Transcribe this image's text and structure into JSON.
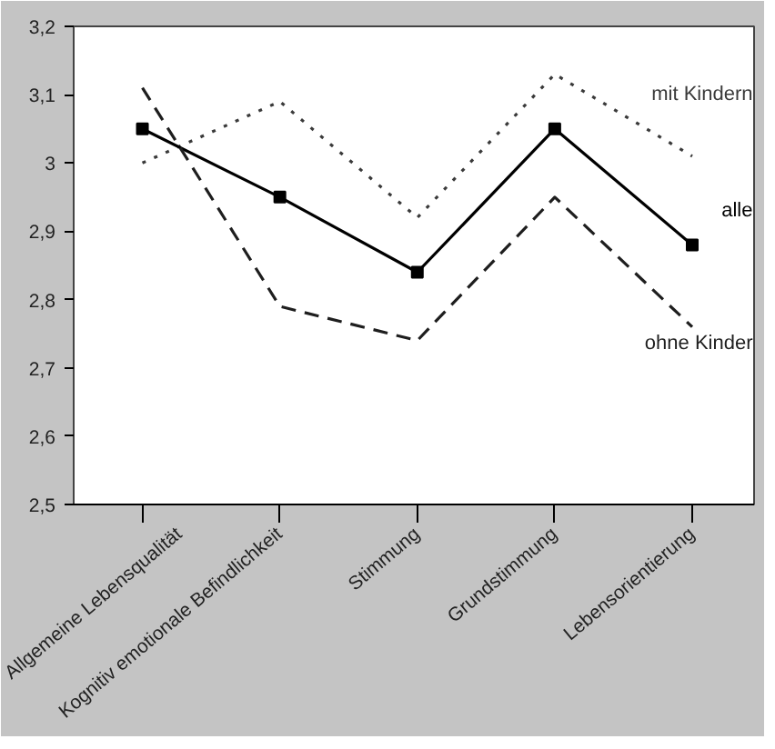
{
  "chart_data": {
    "type": "line",
    "categories": [
      "Allgemeine Lebensqualität",
      "Kognitiv emotionale Befindlichkeit",
      "Stimmung",
      "Grundstimmung",
      "Lebensorientierung"
    ],
    "series": [
      {
        "name": "mit Kindern",
        "color": "#3a3a3a",
        "line_style": "dotted",
        "marker": "none",
        "values": [
          3.0,
          3.09,
          2.92,
          3.13,
          3.01
        ]
      },
      {
        "name": "alle",
        "color": "#000000",
        "line_style": "solid",
        "marker": "square",
        "values": [
          3.05,
          2.95,
          2.84,
          3.05,
          2.88
        ]
      },
      {
        "name": "ohne Kinder",
        "color": "#1e1e1e",
        "line_style": "dashed",
        "marker": "none",
        "values": [
          3.11,
          2.79,
          2.74,
          2.95,
          2.76
        ]
      }
    ],
    "ylim": [
      2.5,
      3.2
    ],
    "yticks": [
      {
        "value": 2.5,
        "label": "2,5"
      },
      {
        "value": 2.6,
        "label": "2,6"
      },
      {
        "value": 2.7,
        "label": "2,7"
      },
      {
        "value": 2.8,
        "label": "2,8"
      },
      {
        "value": 2.9,
        "label": "2,9"
      },
      3,
      {
        "value": 3.1,
        "label": "3,1"
      },
      {
        "value": 3.2,
        "label": "3,2"
      }
    ],
    "grid": false
  }
}
